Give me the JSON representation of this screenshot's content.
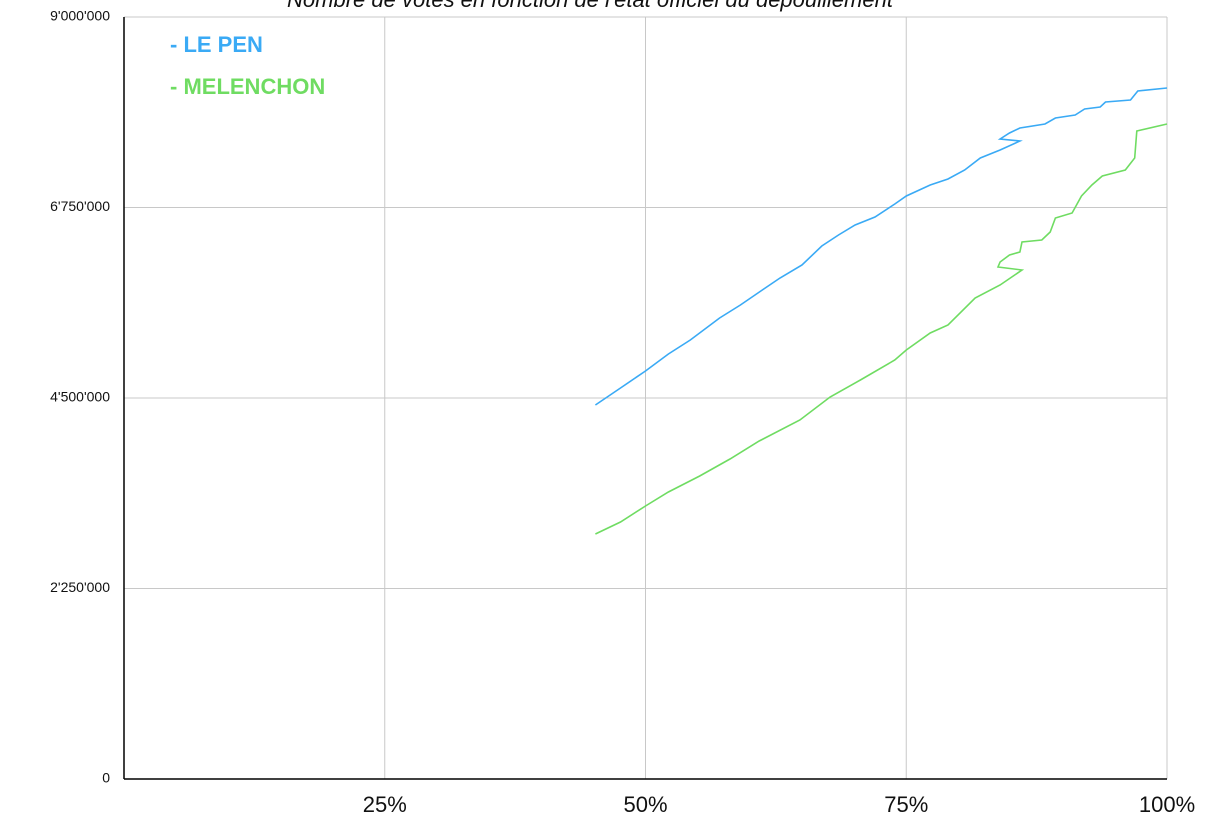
{
  "chart_data": {
    "type": "line",
    "title": "Nombre de votes en fonction de l'état officiel du dépouillement",
    "xlim": [
      0,
      100
    ],
    "xticks": [
      {
        "value": 25,
        "label": "25%"
      },
      {
        "value": 50,
        "label": "50%"
      },
      {
        "value": 75,
        "label": "75%"
      },
      {
        "value": 100,
        "label": "100%"
      }
    ],
    "ylim": [
      0,
      9000000
    ],
    "yticks": [
      0,
      {
        "value": 2250000,
        "label": "2'250'000"
      },
      {
        "value": 4500000,
        "label": "4'500'000"
      },
      {
        "value": 6750000,
        "label": "6'750'000"
      },
      {
        "value": 9000000,
        "label": "9'000'000"
      }
    ],
    "grid": true,
    "legend": "upper left",
    "series": [
      {
        "name": "- LE PEN",
        "color": "#3aaaf5",
        "x": [
          45.2,
          47.6,
          50.0,
          52.2,
          54.3,
          57.1,
          59.1,
          61.2,
          62.9,
          65.0,
          66.9,
          68.5,
          70.1,
          72.0,
          73.9,
          75.0,
          77.3,
          79.0,
          80.6,
          82.1,
          84.0,
          85.9,
          84.0,
          84.9,
          85.9,
          88.3,
          89.3,
          91.2,
          92.1,
          93.6,
          94.1,
          96.5,
          97.2,
          100
        ],
        "values": [
          4417000,
          4618000,
          4819000,
          5020000,
          5185000,
          5445000,
          5598000,
          5776000,
          5917000,
          6071000,
          6295000,
          6425000,
          6543000,
          6638000,
          6791000,
          6886000,
          7016000,
          7087000,
          7193000,
          7335000,
          7429000,
          7536000,
          7559000,
          7630000,
          7689000,
          7736000,
          7807000,
          7842000,
          7913000,
          7937000,
          7996000,
          8020000,
          8126000,
          8161000
        ]
      },
      {
        "name": "- MELENCHON",
        "color": "#6fdc62",
        "x": [
          45.2,
          47.6,
          50.0,
          52.2,
          55.2,
          58.1,
          60.9,
          64.8,
          67.7,
          70.6,
          73.9,
          75.0,
          77.3,
          79.0,
          81.6,
          84.0,
          86.1,
          83.8,
          84.0,
          84.9,
          85.9,
          86.1,
          88.0,
          88.8,
          89.3,
          90.9,
          91.8,
          92.8,
          93.8,
          96.0,
          96.9,
          97.1,
          100
        ],
        "values": [
          2894000,
          3035000,
          3224000,
          3390000,
          3579000,
          3780000,
          3992000,
          4240000,
          4512000,
          4713000,
          4949000,
          5067000,
          5268000,
          5362000,
          5681000,
          5835000,
          6012000,
          6047000,
          6106000,
          6189000,
          6224000,
          6342000,
          6366000,
          6461000,
          6626000,
          6685000,
          6886000,
          7016000,
          7122000,
          7193000,
          7335000,
          7654000,
          7736000
        ]
      }
    ]
  }
}
